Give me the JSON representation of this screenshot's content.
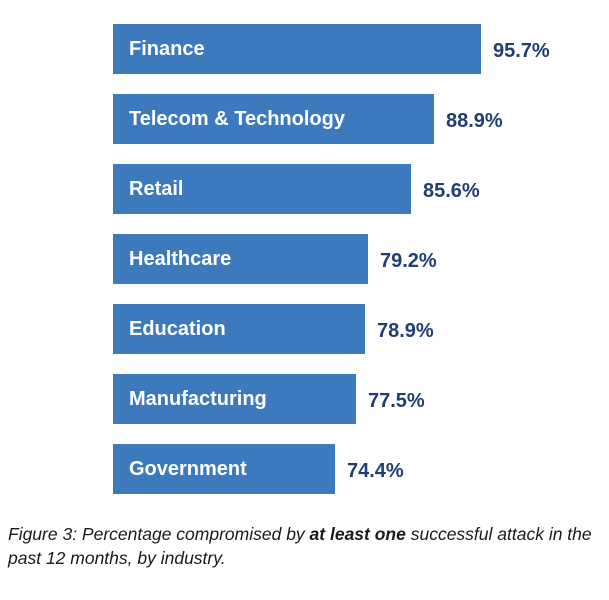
{
  "chart_data": {
    "type": "bar",
    "orientation": "horizontal",
    "categories": [
      "Finance",
      "Telecom & Technology",
      "Retail",
      "Healthcare",
      "Education",
      "Manufacturing",
      "Government"
    ],
    "values": [
      95.7,
      88.9,
      85.6,
      79.2,
      78.9,
      77.5,
      74.4
    ],
    "value_labels": [
      "95.7%",
      "88.9%",
      "85.6%",
      "79.2%",
      "78.9%",
      "77.5%",
      "74.4%"
    ],
    "unit": "%",
    "bar_color": "#3d7abd",
    "value_label_color": "#1f3f73",
    "grid": false
  },
  "caption": {
    "prefix": "Figure 3: Percentage compromised by ",
    "emphasis": "at least one",
    "suffix": " successful attack in the past 12 months, by industry."
  }
}
